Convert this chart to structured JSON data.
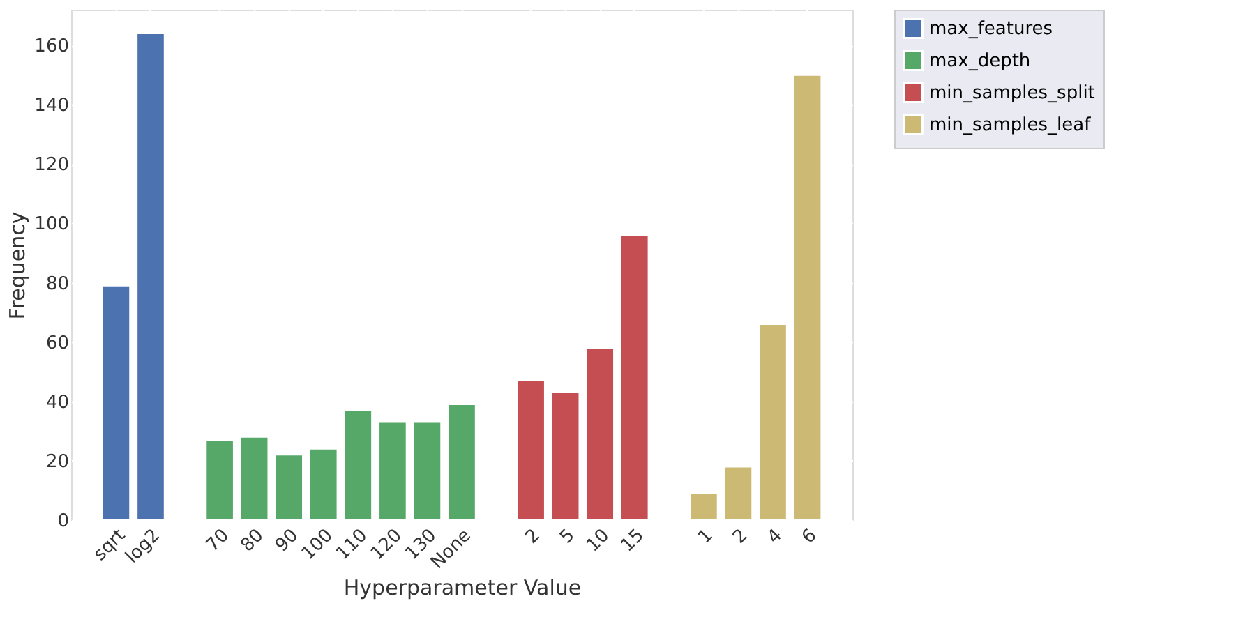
{
  "chart_data": {
    "type": "bar",
    "xlabel": "Hyperparameter Value",
    "ylabel": "Frequency",
    "categories": [
      "sqrt",
      "log2",
      null,
      "70",
      "80",
      "90",
      "100",
      "110",
      "120",
      "130",
      "None",
      null,
      "2",
      "5",
      "10",
      "15",
      null,
      "1",
      "2",
      "4",
      "6"
    ],
    "series": [
      {
        "name": "max_features",
        "color": "#4c72b0",
        "values": [
          79,
          164,
          null,
          null,
          null,
          null,
          null,
          null,
          null,
          null,
          null,
          null,
          null,
          null,
          null,
          null,
          null,
          null,
          null,
          null,
          null
        ]
      },
      {
        "name": "max_depth",
        "color": "#55a868",
        "values": [
          null,
          null,
          null,
          27,
          28,
          22,
          24,
          37,
          33,
          33,
          39,
          null,
          null,
          null,
          null,
          null,
          null,
          null,
          null,
          null,
          null
        ]
      },
      {
        "name": "min_samples_split",
        "color": "#c44e52",
        "values": [
          null,
          null,
          null,
          null,
          null,
          null,
          null,
          null,
          null,
          null,
          null,
          null,
          47,
          43,
          58,
          96,
          null,
          null,
          null,
          null,
          null
        ]
      },
      {
        "name": "min_samples_leaf",
        "color": "#ccb974",
        "values": [
          null,
          null,
          null,
          null,
          null,
          null,
          null,
          null,
          null,
          null,
          null,
          null,
          null,
          null,
          null,
          null,
          null,
          9,
          18,
          66,
          150
        ]
      }
    ],
    "ylim": [
      0,
      172
    ],
    "yticks": [
      0,
      20,
      40,
      60,
      80,
      100,
      120,
      140,
      160
    ],
    "grid": true,
    "legend": "top right"
  }
}
